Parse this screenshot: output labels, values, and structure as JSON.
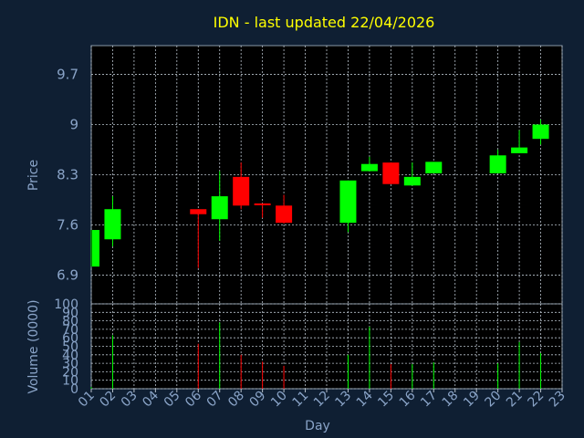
{
  "colors": {
    "background": "#0f1f33",
    "plot_background": "#000000",
    "title": "#ffff00",
    "axis_text": "#8aa4c8",
    "grid": "#b8c2cc",
    "up": "#00ff00",
    "down": "#ff0000"
  },
  "chart_data": [
    {
      "type": "candlestick",
      "title": "IDN - last updated 22/04/2026",
      "ylabel": "Price",
      "ylim": [
        6.5,
        10.1
      ],
      "yticks": [
        6.9,
        7.6,
        8.3,
        9,
        9.7
      ],
      "ytick_labels": [
        "6.9",
        "7.6",
        "8.3",
        "9",
        "9.7"
      ],
      "xlim": [
        1,
        23
      ],
      "grid": true,
      "candles": [
        {
          "day": 1,
          "open": 7.02,
          "high": 7.53,
          "low": 7.02,
          "close": 7.53
        },
        {
          "day": 2,
          "open": 7.4,
          "high": 8.0,
          "low": 7.3,
          "close": 7.82
        },
        {
          "day": 6,
          "open": 7.82,
          "high": 7.82,
          "low": 7.0,
          "close": 7.75
        },
        {
          "day": 7,
          "open": 7.68,
          "high": 8.35,
          "low": 7.38,
          "close": 8.0
        },
        {
          "day": 8,
          "open": 8.27,
          "high": 8.47,
          "low": 7.82,
          "close": 7.87
        },
        {
          "day": 9,
          "open": 7.9,
          "high": 7.9,
          "low": 7.7,
          "close": 7.88
        },
        {
          "day": 10,
          "open": 7.87,
          "high": 8.02,
          "low": 7.62,
          "close": 7.63
        },
        {
          "day": 13,
          "open": 7.63,
          "high": 8.22,
          "low": 7.5,
          "close": 8.22
        },
        {
          "day": 14,
          "open": 8.35,
          "high": 8.55,
          "low": 8.35,
          "close": 8.45
        },
        {
          "day": 15,
          "open": 8.47,
          "high": 8.47,
          "low": 8.17,
          "close": 8.17
        },
        {
          "day": 16,
          "open": 8.15,
          "high": 8.47,
          "low": 8.15,
          "close": 8.27
        },
        {
          "day": 17,
          "open": 8.32,
          "high": 8.48,
          "low": 8.32,
          "close": 8.48
        },
        {
          "day": 20,
          "open": 8.32,
          "high": 8.65,
          "low": 8.32,
          "close": 8.57
        },
        {
          "day": 21,
          "open": 8.6,
          "high": 8.92,
          "low": 8.6,
          "close": 8.68
        },
        {
          "day": 22,
          "open": 8.8,
          "high": 9.07,
          "low": 8.72,
          "close": 9.0
        }
      ]
    },
    {
      "type": "bar",
      "ylabel": "Volume (0000)",
      "ylim": [
        0,
        100
      ],
      "yticks": [
        0,
        10,
        20,
        30,
        40,
        50,
        60,
        70,
        80,
        90,
        100
      ],
      "ytick_labels": [
        "0",
        "10",
        "20",
        "30",
        "40",
        "50",
        "60",
        "70",
        "80",
        "90",
        "100"
      ],
      "xlabel": "Day",
      "xlim": [
        1,
        23
      ],
      "xticks": [
        1,
        2,
        3,
        4,
        5,
        6,
        7,
        8,
        9,
        10,
        11,
        12,
        13,
        14,
        15,
        16,
        17,
        18,
        19,
        20,
        21,
        22,
        23
      ],
      "xtick_labels": [
        "01",
        "02",
        "03",
        "04",
        "05",
        "06",
        "07",
        "08",
        "09",
        "10",
        "11",
        "12",
        "13",
        "14",
        "15",
        "16",
        "17",
        "18",
        "19",
        "20",
        "21",
        "22",
        "23"
      ],
      "grid": true,
      "volumes": [
        {
          "day": 1,
          "value": 2,
          "direction": "up"
        },
        {
          "day": 2,
          "value": 63,
          "direction": "up"
        },
        {
          "day": 6,
          "value": 53,
          "direction": "down"
        },
        {
          "day": 7,
          "value": 78,
          "direction": "up"
        },
        {
          "day": 8,
          "value": 40,
          "direction": "down"
        },
        {
          "day": 9,
          "value": 32,
          "direction": "down"
        },
        {
          "day": 10,
          "value": 27,
          "direction": "down"
        },
        {
          "day": 13,
          "value": 40,
          "direction": "up"
        },
        {
          "day": 14,
          "value": 73,
          "direction": "up"
        },
        {
          "day": 15,
          "value": 29,
          "direction": "down"
        },
        {
          "day": 16,
          "value": 29,
          "direction": "up"
        },
        {
          "day": 17,
          "value": 31,
          "direction": "up"
        },
        {
          "day": 20,
          "value": 30,
          "direction": "up"
        },
        {
          "day": 21,
          "value": 55,
          "direction": "up"
        },
        {
          "day": 22,
          "value": 42,
          "direction": "up"
        }
      ]
    }
  ]
}
